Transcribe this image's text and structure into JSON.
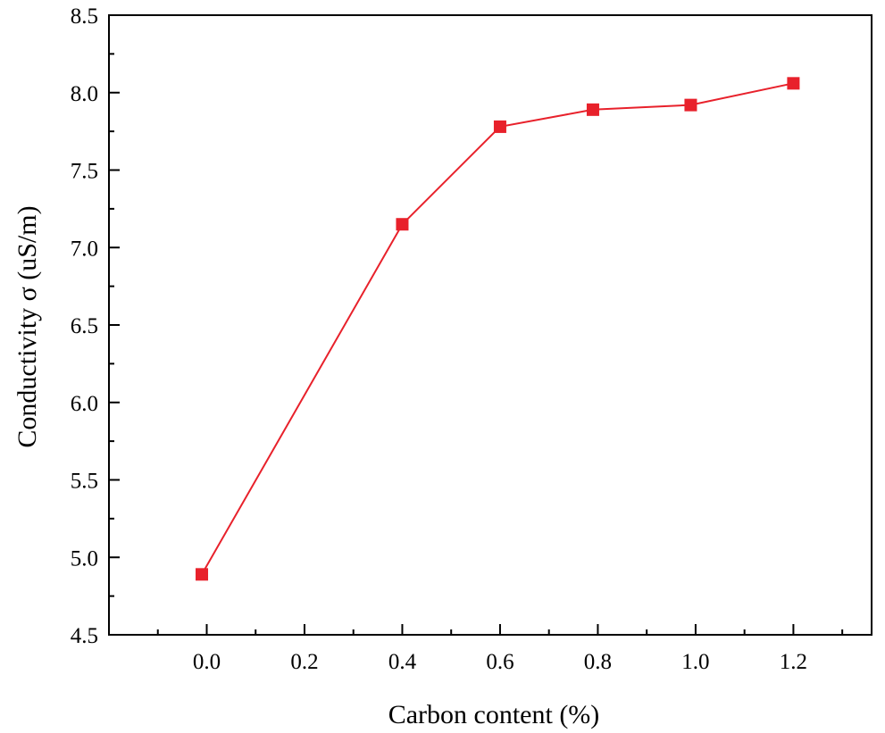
{
  "chart_data": {
    "type": "line",
    "title": "",
    "xlabel": "Carbon content (%)",
    "ylabel": "Conductivity σ (uS/m)",
    "xlim": [
      -0.2,
      1.36
    ],
    "ylim": [
      4.5,
      8.5
    ],
    "x_ticks": [
      "0.0",
      "0.2",
      "0.4",
      "0.6",
      "0.8",
      "1.0",
      "1.2"
    ],
    "y_ticks": [
      "4.5",
      "5.0",
      "5.5",
      "6.0",
      "6.5",
      "7.0",
      "7.5",
      "8.0",
      "8.5"
    ],
    "grid": false,
    "legend": "none",
    "series": [
      {
        "color": "#e8212b",
        "marker": "square",
        "x": [
          -0.01,
          0.4,
          0.6,
          0.79,
          0.99,
          1.2
        ],
        "y": [
          4.89,
          7.15,
          7.78,
          7.89,
          7.92,
          8.06
        ]
      }
    ]
  }
}
